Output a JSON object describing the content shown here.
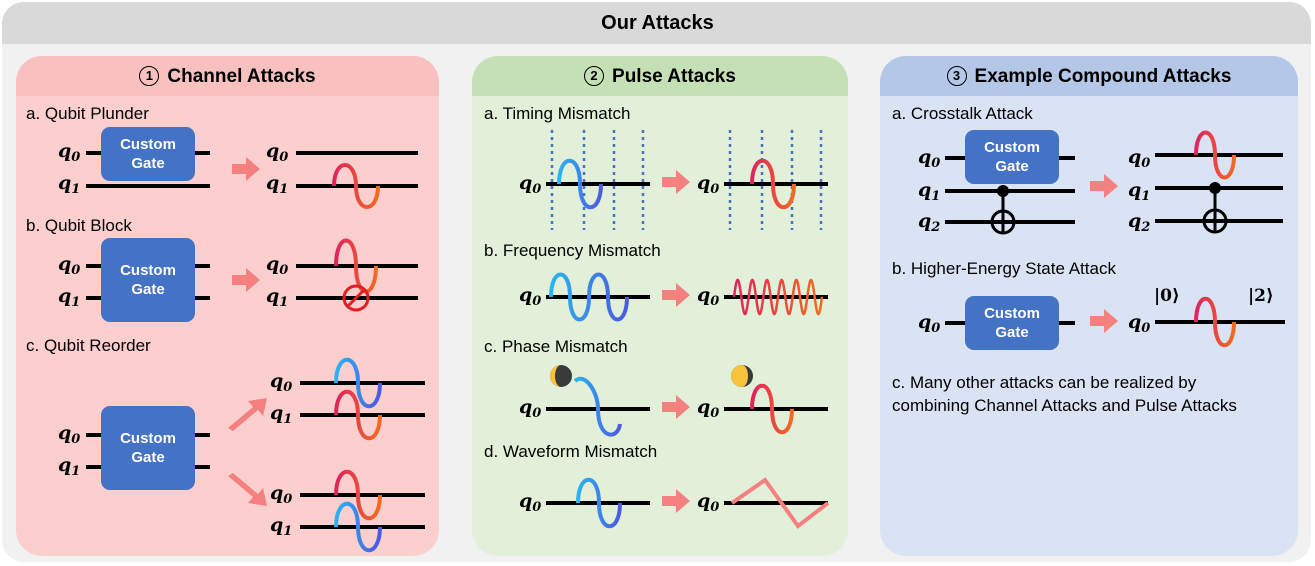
{
  "title": "Our Attacks",
  "panels": [
    {
      "num": "1",
      "title": "Channel Attacks",
      "color": "#fccfcf",
      "head_color": "#f9c0c0",
      "items": [
        "a. Qubit Plunder",
        "b. Qubit Block",
        "c. Qubit Reorder"
      ]
    },
    {
      "num": "2",
      "title": "Pulse Attacks",
      "color": "#e2f0d9",
      "head_color": "#c5e0b4",
      "items": [
        "a. Timing Mismatch",
        "b. Frequency Mismatch",
        "c. Phase Mismatch",
        "d. Waveform Mismatch"
      ]
    },
    {
      "num": "3",
      "title": "Example Compound Attacks",
      "color": "#dae3f3",
      "head_color": "#b4c7e7",
      "items": [
        "a. Crosstalk Attack",
        "b. Higher-Energy State Attack",
        "c. Many other attacks can be realized by",
        "combining Channel Attacks and Pulse Attacks"
      ]
    }
  ],
  "gate_line1": "Custom",
  "gate_line2": "Gate",
  "q0": "q",
  "q1": "q",
  "q2": "q",
  "sub0": "0",
  "sub1": "1",
  "sub2": "2",
  "ket0": "|0⟩",
  "ket2": "|2⟩",
  "colors": {
    "gate": "#4472c4",
    "arrow": "#f4817f",
    "wave_pink": "#e0245e",
    "wave_orange": "#f26b21",
    "wave_cyan": "#2ab4f0",
    "wave_purple": "#4c5ae0",
    "dotted": "#4472c4"
  }
}
